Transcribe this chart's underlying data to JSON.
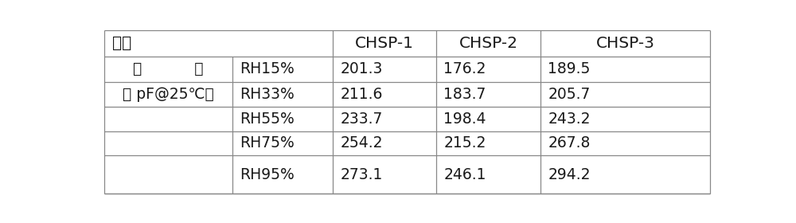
{
  "header_label": "试样",
  "col1_label_line1": "电           容",
  "col1_label_line2": "（ pF@25℃）",
  "rh_labels": [
    "RH15%",
    "RH33%",
    "RH55%",
    "RH75%",
    "RH95%"
  ],
  "chsp_headers": [
    "CHSP-1",
    "CHSP-2",
    "CHSP-3"
  ],
  "data": [
    [
      "201.3",
      "176.2",
      "189.5"
    ],
    [
      "211.6",
      "183.7",
      "205.7"
    ],
    [
      "233.7",
      "198.4",
      "243.2"
    ],
    [
      "254.2",
      "215.2",
      "267.8"
    ],
    [
      "273.1",
      "246.1",
      "294.2"
    ]
  ],
  "background_color": "#ffffff",
  "line_color": "#888888",
  "text_color": "#1a1a1a",
  "font_size": 13.5,
  "vlines": [
    8,
    215,
    378,
    546,
    715,
    990
  ],
  "row_tops": [
    274,
    232,
    190,
    150,
    110,
    70,
    8
  ]
}
